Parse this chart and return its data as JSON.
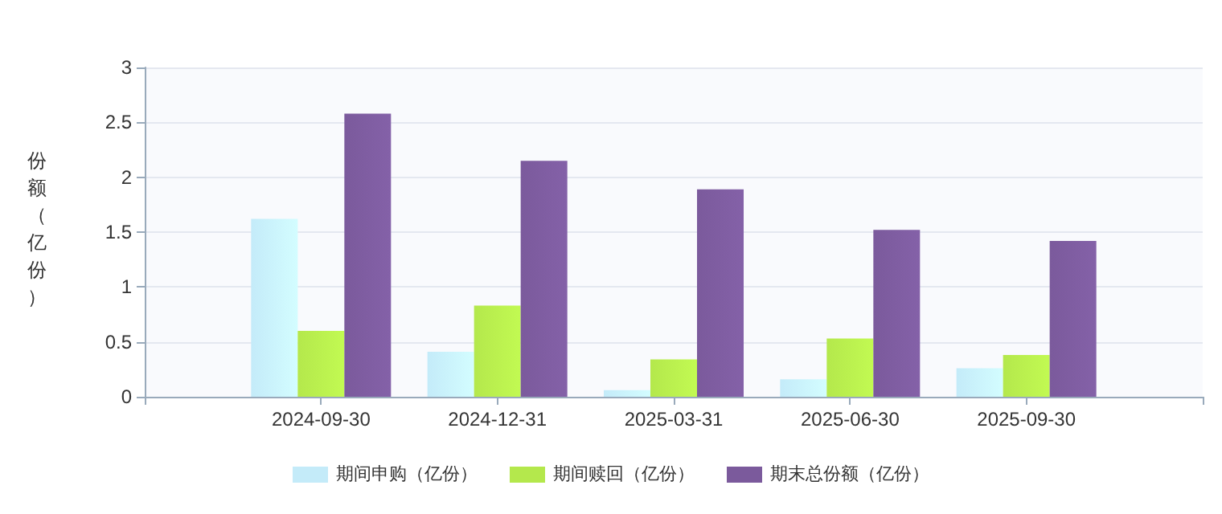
{
  "chart_data": {
    "type": "bar",
    "ylabel": "份额（亿份）",
    "categories": [
      null,
      "2024-09-30",
      "2024-12-31",
      "2025-03-31",
      "2025-06-30",
      "2025-09-30",
      null
    ],
    "series": [
      {
        "name": "期间申购（亿份）",
        "color": "#c4ebf9",
        "values": [
          null,
          1.62,
          0.41,
          0.06,
          0.16,
          0.26,
          null
        ]
      },
      {
        "name": "期间赎回（亿份）",
        "color": "#b4e84c",
        "values": [
          null,
          0.6,
          0.83,
          0.34,
          0.53,
          0.38,
          null
        ]
      },
      {
        "name": "期末总份额（亿份）",
        "color": "#7b5a9c",
        "values": [
          null,
          2.58,
          2.15,
          1.89,
          1.52,
          1.42,
          null
        ]
      }
    ],
    "ylim": [
      0,
      3
    ],
    "yticks": [
      0,
      0.5,
      1,
      1.5,
      2,
      2.5,
      3
    ],
    "grid": "y",
    "legend": "bottom"
  }
}
